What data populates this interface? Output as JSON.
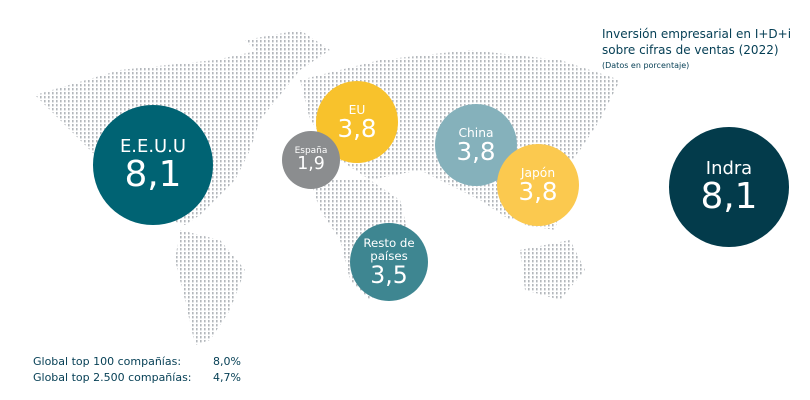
{
  "chart_data": {
    "type": "bubble",
    "title": "Inversión empresarial en I+D+i sobre cifras de ventas (2022)",
    "subtitle": "(Datos en porcentaje)",
    "categories": [
      "E.E.U.U",
      "EU",
      "España",
      "China",
      "Japón",
      "Resto de países",
      "Indra"
    ],
    "values": [
      8.1,
      3.8,
      1.9,
      3.8,
      3.8,
      3.5,
      8.1
    ],
    "value_labels": [
      "8,1",
      "3,8",
      "1,9",
      "3,8",
      "3,8",
      "3,5",
      "8,1"
    ],
    "colors": [
      "#006373",
      "#f8c22c",
      "#8b8d8f",
      "#85b1bb",
      "#fbc94f",
      "#3e8691",
      "#033b4b"
    ],
    "notes": [
      {
        "label": "Global top 100 compañías:",
        "value": 8.0,
        "value_label": "8,0%"
      },
      {
        "label": "Global top 2.500 compañías:",
        "value": 4.7,
        "value_label": "4,7%"
      }
    ]
  }
}
